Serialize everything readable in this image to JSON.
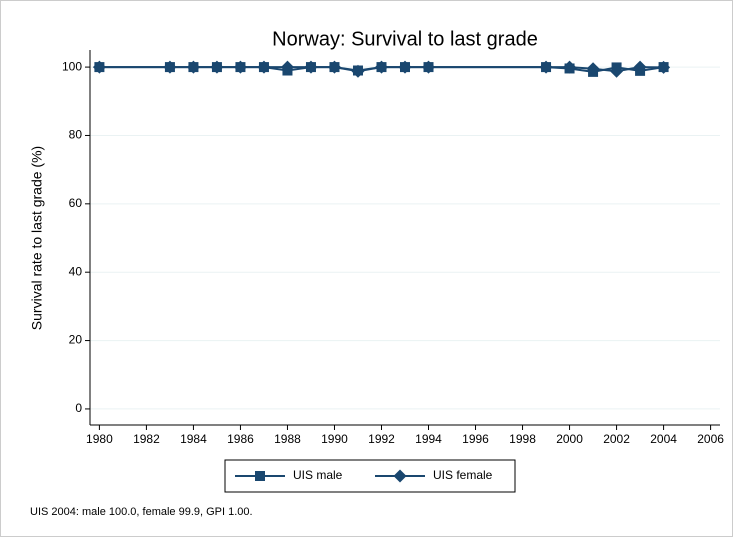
{
  "chart_data": {
    "type": "line",
    "title": "Norway: Survival to last grade",
    "y_label": "Survival rate to last grade (%)",
    "note": "UIS 2004: male 100.0, female 99.9, GPI 1.00.",
    "x": [
      1980,
      1983,
      1984,
      1985,
      1986,
      1987,
      1988,
      1989,
      1990,
      1991,
      1992,
      1993,
      1994,
      1999,
      2000,
      2001,
      2002,
      2003,
      2004
    ],
    "series": [
      {
        "name": "UIS male",
        "color": "#1a476f",
        "marker": "square",
        "values": [
          100,
          100,
          100,
          100,
          100,
          100,
          99,
          100,
          100,
          99,
          100,
          100,
          100,
          100,
          99.6,
          98.6,
          99.9,
          98.9,
          100
        ]
      },
      {
        "name": "UIS female",
        "color": "#1a476f",
        "marker": "diamond",
        "values": [
          100,
          100,
          100,
          100,
          100,
          100,
          100,
          100,
          100,
          98.8,
          100,
          100,
          100,
          100,
          100,
          99.5,
          98.8,
          100,
          99.9
        ]
      }
    ],
    "xlim": [
      1979.6,
      2006.4
    ],
    "xticks": [
      1980,
      1982,
      1984,
      1986,
      1988,
      1990,
      1992,
      1994,
      1996,
      1998,
      2000,
      2002,
      2004,
      2006
    ],
    "ylim": [
      -4.7,
      105
    ],
    "yticks": [
      0,
      20,
      40,
      60,
      80,
      100
    ],
    "grid": true,
    "legend": "bottom"
  }
}
